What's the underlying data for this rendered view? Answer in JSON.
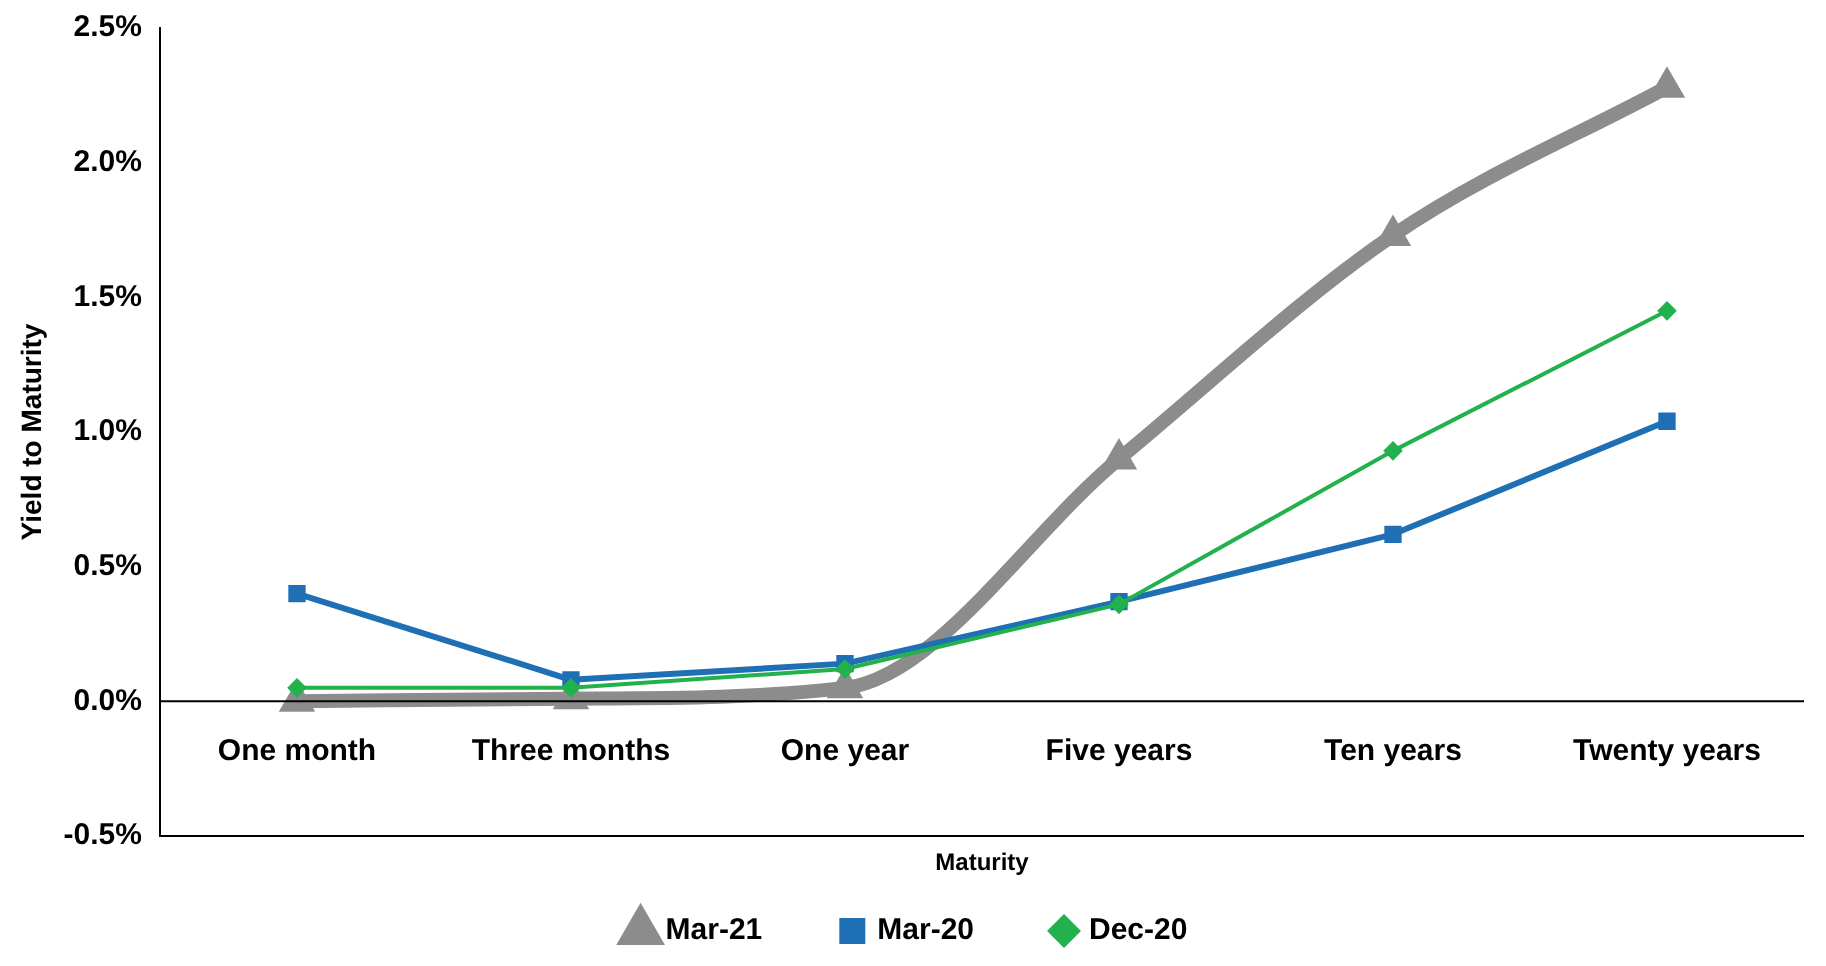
{
  "chart_data": {
    "type": "line",
    "xlabel": "Maturity",
    "ylabel": "Yield to Maturity",
    "categories": [
      "One month",
      "Three months",
      "One year",
      "Five years",
      "Ten years",
      "Twenty years"
    ],
    "ylim": [
      -0.5,
      2.5
    ],
    "yticks": [
      {
        "value": -0.5,
        "label": "-0.5%"
      },
      {
        "value": 0,
        "label": "0.0%"
      },
      {
        "value": 0.5,
        "label": "0.5%"
      },
      {
        "value": 1,
        "label": "1.0%"
      },
      {
        "value": 1.5,
        "label": "1.5%"
      },
      {
        "value": 2,
        "label": "2.0%"
      },
      {
        "value": 2.5,
        "label": "2.5%"
      }
    ],
    "grid": false,
    "legend": "bottom",
    "series": [
      {
        "name": "Mar-21",
        "color": "#8c8c8c",
        "marker": "triangle",
        "values": [
          0.0,
          0.01,
          0.05,
          0.9,
          1.73,
          2.28
        ]
      },
      {
        "name": "Mar-20",
        "color": "#1f6fb5",
        "marker": "square",
        "values": [
          0.4,
          0.08,
          0.14,
          0.37,
          0.62,
          1.04
        ]
      },
      {
        "name": "Dec-20",
        "color": "#22b14c",
        "marker": "diamond",
        "values": [
          0.05,
          0.05,
          0.12,
          0.36,
          0.93,
          1.45
        ]
      }
    ]
  }
}
